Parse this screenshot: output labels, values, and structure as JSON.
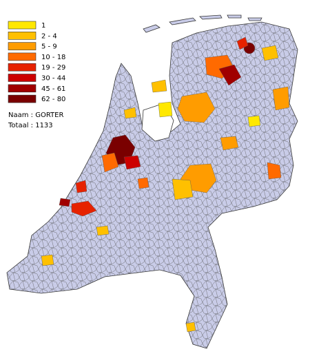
{
  "legend": {
    "items": [
      {
        "label": "1",
        "color": "#ffe800"
      },
      {
        "label": "2 - 4",
        "color": "#ffc000"
      },
      {
        "label": "5 - 9",
        "color": "#ff9c00"
      },
      {
        "label": "10 - 18",
        "color": "#ff6a00"
      },
      {
        "label": "19 - 29",
        "color": "#e62200"
      },
      {
        "label": "30 - 44",
        "color": "#cc0000"
      },
      {
        "label": "45 - 61",
        "color": "#a00000"
      },
      {
        "label": "62 - 80",
        "color": "#7a0000"
      }
    ]
  },
  "info": {
    "name": "Naam : GORTER",
    "total": "Totaal : 1133"
  }
}
